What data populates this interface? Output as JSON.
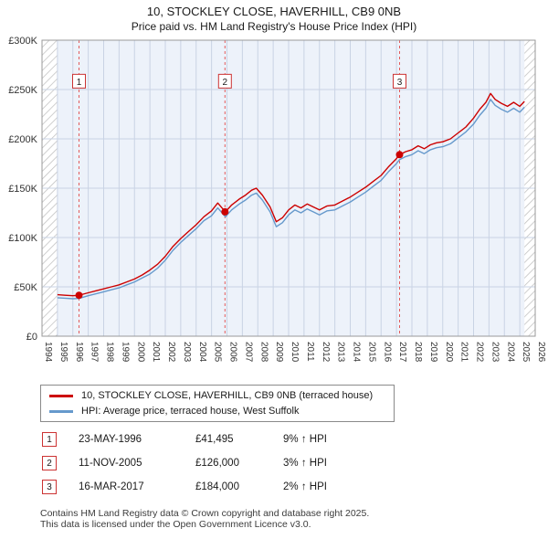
{
  "title": "10, STOCKLEY CLOSE, HAVERHILL, CB9 0NB",
  "subtitle": "Price paid vs. HM Land Registry's House Price Index (HPI)",
  "sales_table": [
    {
      "num": "1",
      "date": "23-MAY-1996",
      "price": "£41,495",
      "hpi": "9% ↑ HPI"
    },
    {
      "num": "2",
      "date": "11-NOV-2005",
      "price": "£126,000",
      "hpi": "3% ↑ HPI"
    },
    {
      "num": "3",
      "date": "16-MAR-2017",
      "price": "£184,000",
      "hpi": "2% ↑ HPI"
    }
  ],
  "footer": {
    "line1": "Contains HM Land Registry data © Crown copyright and database right 2025.",
    "line2": "This data is licensed under the Open Government Licence v3.0."
  },
  "chart_data": {
    "type": "line",
    "title": "10, STOCKLEY CLOSE, HAVERHILL, CB9 0NB",
    "subtitle": "Price paid vs. HM Land Registry's House Price Index (HPI)",
    "x_range": [
      1994,
      2026
    ],
    "y_range": [
      0,
      300000
    ],
    "y_ticks": [
      0,
      50000,
      100000,
      150000,
      200000,
      250000,
      300000
    ],
    "y_tick_labels": [
      "£0",
      "£50K",
      "£100K",
      "£150K",
      "£200K",
      "£250K",
      "£300K"
    ],
    "x_tick_step": 1,
    "data_start": 1995.0,
    "data_end": 2025.3,
    "grid": true,
    "plot_bg": "#edf2fa",
    "grid_color": "#c9d3e4",
    "frame_color": "#999999",
    "hatch_color": "#c0c0c0",
    "sale_line_color": "#e35b5b",
    "marker_color": "#cc0000",
    "badge_border_color": "#cc3333",
    "legend_position": "bottom",
    "series": [
      {
        "name": "10, STOCKLEY CLOSE, HAVERHILL, CB9 0NB (terraced house)",
        "color": "#cc0000",
        "width": 1.4,
        "x": [
          1995.0,
          1995.5,
          1996.0,
          1996.4,
          1997.0,
          1997.5,
          1998.0,
          1998.5,
          1999.0,
          1999.5,
          2000.0,
          2000.5,
          2001.0,
          2001.5,
          2002.0,
          2002.5,
          2003.0,
          2003.5,
          2004.0,
          2004.5,
          2005.0,
          2005.4,
          2005.9,
          2006.3,
          2006.8,
          2007.2,
          2007.6,
          2007.9,
          2008.3,
          2008.8,
          2009.2,
          2009.6,
          2010.0,
          2010.4,
          2010.8,
          2011.2,
          2011.6,
          2012.0,
          2012.5,
          2013.0,
          2013.5,
          2014.0,
          2014.5,
          2015.0,
          2015.5,
          2016.0,
          2016.5,
          2017.0,
          2017.2,
          2017.6,
          2018.0,
          2018.4,
          2018.8,
          2019.2,
          2019.6,
          2020.0,
          2020.5,
          2021.0,
          2021.5,
          2022.0,
          2022.4,
          2022.8,
          2023.1,
          2023.4,
          2023.8,
          2024.2,
          2024.6,
          2025.0,
          2025.3
        ],
        "values": [
          42000,
          41500,
          41000,
          41495,
          44000,
          46000,
          48000,
          50000,
          52000,
          55000,
          58000,
          62000,
          67000,
          73000,
          81000,
          91000,
          99000,
          106000,
          113000,
          121000,
          127000,
          135000,
          126000,
          133000,
          139000,
          143000,
          148000,
          150000,
          143000,
          131000,
          116000,
          120000,
          128000,
          133000,
          130000,
          134000,
          131000,
          128000,
          132000,
          133000,
          137000,
          141000,
          146000,
          151000,
          157000,
          163000,
          172000,
          180000,
          184000,
          187000,
          189000,
          193000,
          190000,
          194000,
          196000,
          197000,
          200000,
          206000,
          212000,
          221000,
          230000,
          237000,
          246000,
          240000,
          236000,
          233000,
          237000,
          233000,
          238000
        ]
      },
      {
        "name": "HPI: Average price, terraced house, West Suffolk",
        "color": "#6699cc",
        "width": 1.4,
        "x": [
          1995.0,
          1995.5,
          1996.0,
          1996.4,
          1997.0,
          1997.5,
          1998.0,
          1998.5,
          1999.0,
          1999.5,
          2000.0,
          2000.5,
          2001.0,
          2001.5,
          2002.0,
          2002.5,
          2003.0,
          2003.5,
          2004.0,
          2004.5,
          2005.0,
          2005.4,
          2005.9,
          2006.3,
          2006.8,
          2007.2,
          2007.6,
          2007.9,
          2008.3,
          2008.8,
          2009.2,
          2009.6,
          2010.0,
          2010.4,
          2010.8,
          2011.2,
          2011.6,
          2012.0,
          2012.5,
          2013.0,
          2013.5,
          2014.0,
          2014.5,
          2015.0,
          2015.5,
          2016.0,
          2016.5,
          2017.0,
          2017.2,
          2017.6,
          2018.0,
          2018.4,
          2018.8,
          2019.2,
          2019.6,
          2020.0,
          2020.5,
          2021.0,
          2021.5,
          2022.0,
          2022.4,
          2022.8,
          2023.1,
          2023.4,
          2023.8,
          2024.2,
          2024.6,
          2025.0,
          2025.3
        ],
        "values": [
          39000,
          38500,
          38000,
          38200,
          41000,
          43000,
          45000,
          47000,
          49000,
          52000,
          55000,
          59000,
          63000,
          69000,
          77000,
          87000,
          95000,
          102000,
          109000,
          117000,
          122000,
          130000,
          121000,
          128000,
          134000,
          138000,
          143000,
          145000,
          138000,
          126000,
          111000,
          115000,
          123000,
          128000,
          125000,
          129000,
          126000,
          123000,
          127000,
          128000,
          132000,
          136000,
          141000,
          146000,
          152000,
          158000,
          167000,
          175000,
          179000,
          182000,
          184000,
          188000,
          185000,
          189000,
          191000,
          192000,
          195000,
          201000,
          207000,
          215000,
          224000,
          231000,
          240000,
          234000,
          230000,
          227000,
          231000,
          227000,
          232000
        ]
      }
    ],
    "sales": [
      {
        "label": "1",
        "x": 1996.4,
        "y": 41495
      },
      {
        "label": "2",
        "x": 2005.87,
        "y": 126000
      },
      {
        "label": "3",
        "x": 2017.2,
        "y": 184000
      }
    ]
  }
}
